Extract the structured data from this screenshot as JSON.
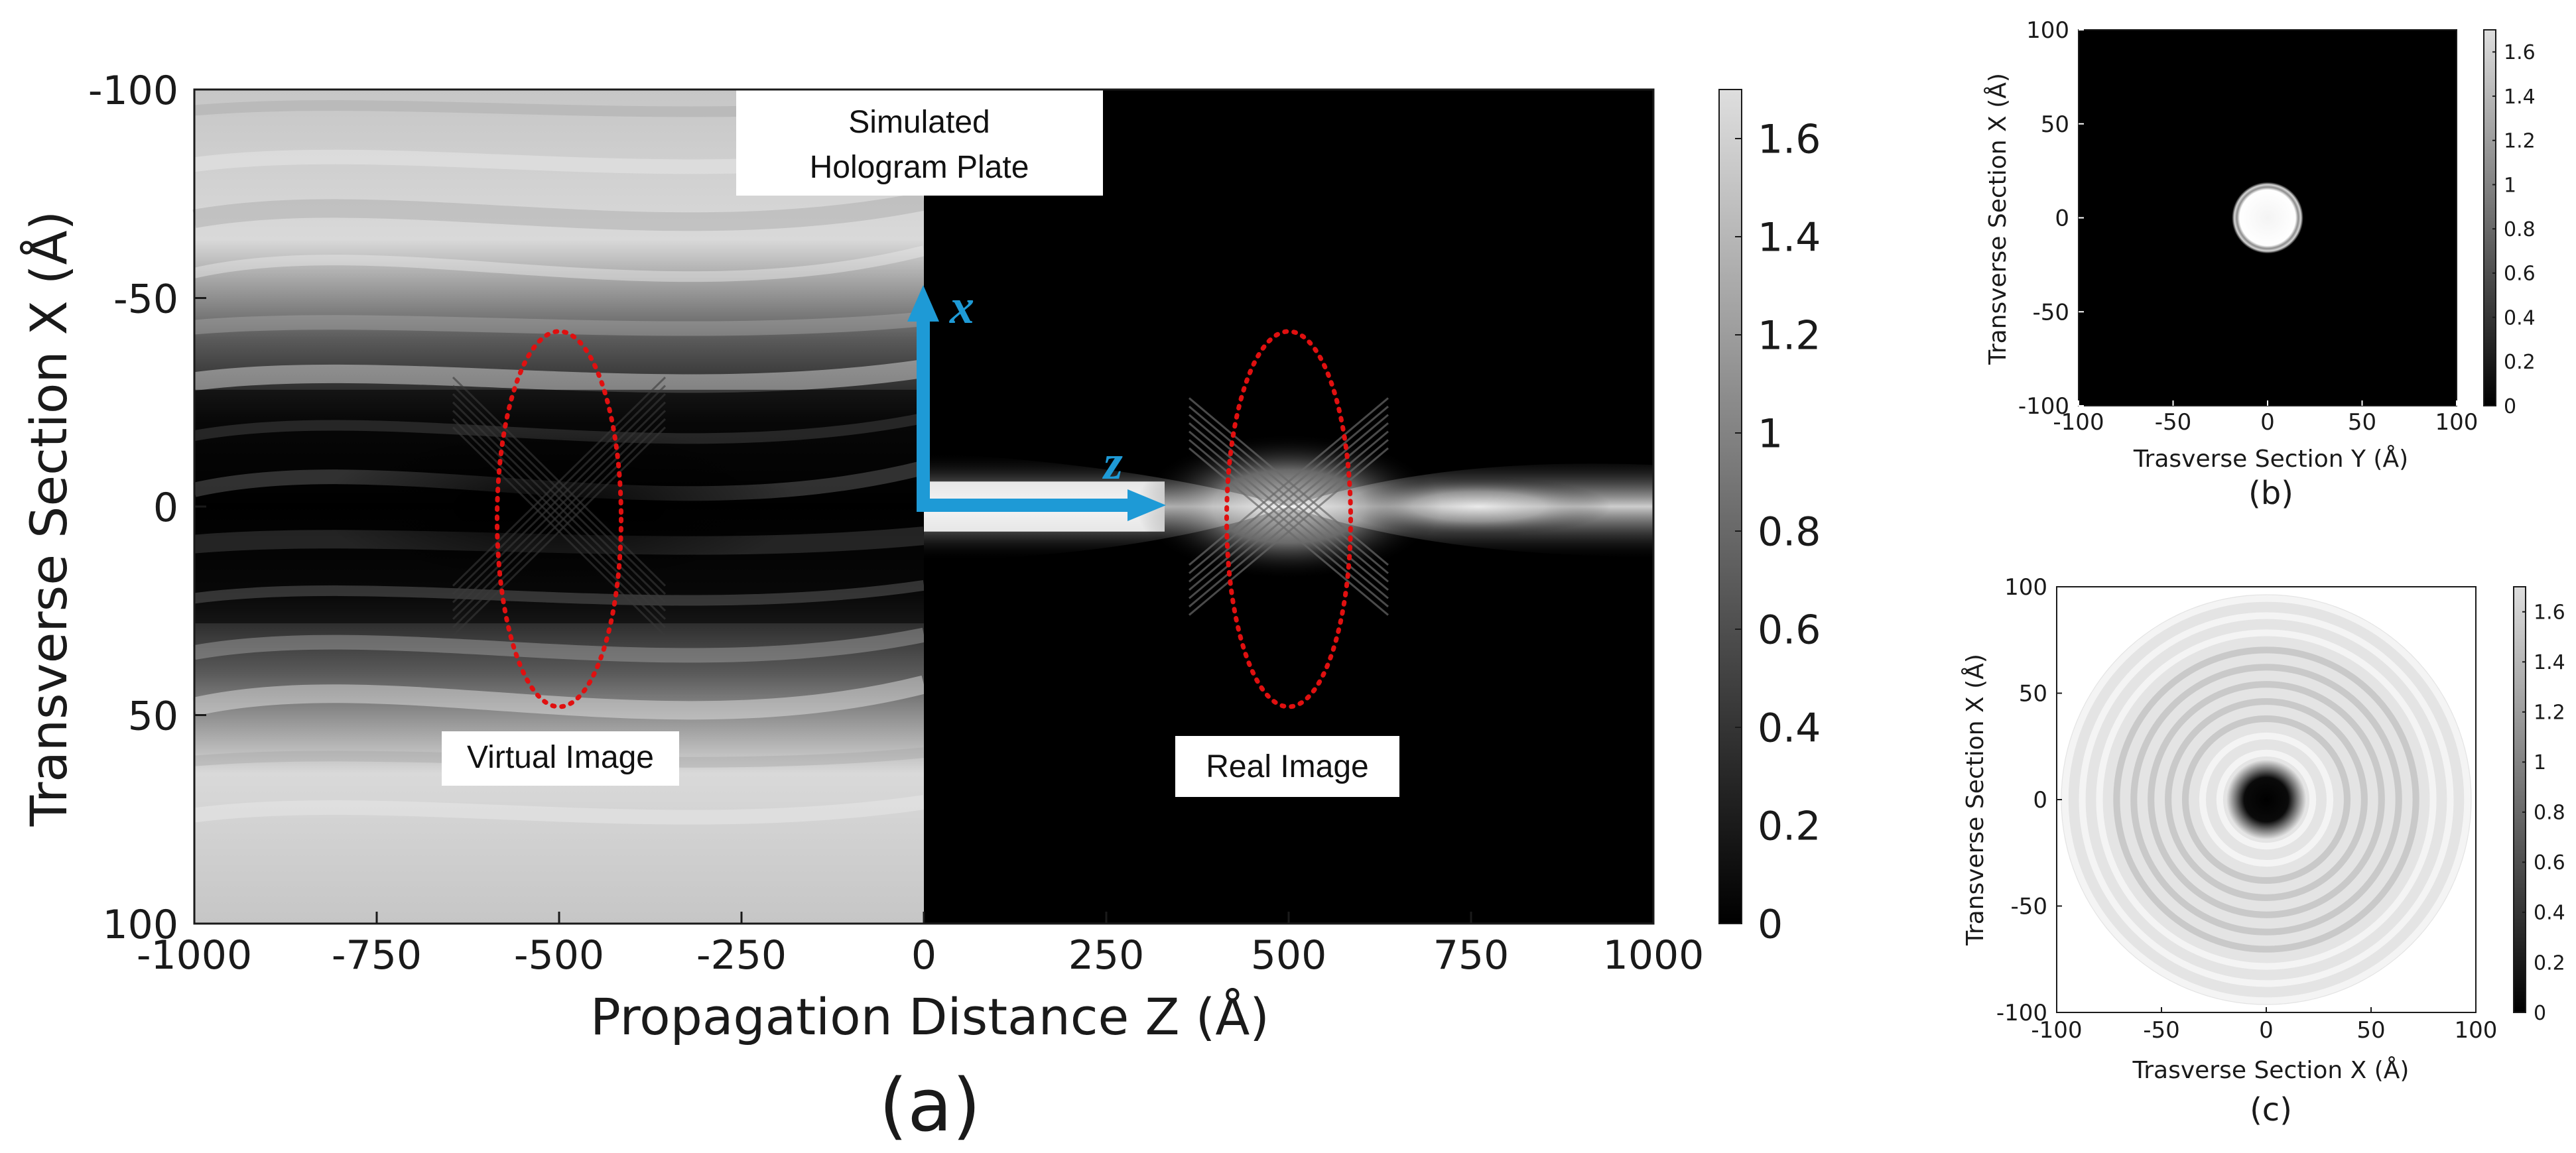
{
  "colors": {
    "accent": "#1e9ad6",
    "ellipse": "#e01010",
    "frame": "#1a1a1a"
  },
  "chart_data": [
    {
      "id": "a",
      "type": "heatmap",
      "caption": "(a)",
      "xlabel": "Propagation Distance Z (Å)",
      "ylabel": "Transverse Section X (Å)",
      "xlim": [
        -1000,
        1000
      ],
      "ylim": [
        -100,
        100
      ],
      "y_inverted": true,
      "xticks": [
        -1000,
        -750,
        -500,
        -250,
        0,
        250,
        500,
        750,
        1000
      ],
      "xtick_labels": [
        "-1000",
        "-750",
        "-500",
        "-250",
        "0",
        "250",
        "500",
        "750",
        "1000"
      ],
      "yticks": [
        -100,
        -50,
        0,
        50,
        100
      ],
      "ytick_labels": [
        "-100",
        "-50",
        "0",
        "50",
        "100"
      ],
      "colorbar": {
        "range": [
          0,
          1.7
        ],
        "ticks": [
          0,
          0.2,
          0.4,
          0.6,
          0.8,
          1,
          1.2,
          1.4,
          1.6
        ],
        "tick_labels": [
          "0",
          "0.2",
          "0.4",
          "0.6",
          "0.8",
          "1",
          "1.2",
          "1.4",
          "1.6"
        ],
        "colormap": "gray"
      },
      "annotations": {
        "hologram_plate": [
          "Simulated",
          "Hologram Plate"
        ],
        "virtual_image": "Virtual Image",
        "real_image": "Real Image",
        "axis_x": "x",
        "axis_z": "z"
      },
      "ellipses": [
        {
          "name": "virtual-image",
          "center_z": -500,
          "center_x": 3,
          "half_width_z": 85,
          "half_height_x": 45
        },
        {
          "name": "real-image",
          "center_z": 500,
          "center_x": 3,
          "half_width_z": 85,
          "half_height_x": 45
        }
      ]
    },
    {
      "id": "b",
      "type": "heatmap",
      "caption": "(b)",
      "xlabel": "Trasverse Section Y (Å)",
      "ylabel": "Transverse Section X (Å)",
      "xlim": [
        -100,
        100
      ],
      "ylim": [
        -100,
        100
      ],
      "xticks": [
        -100,
        -50,
        0,
        50,
        100
      ],
      "xtick_labels": [
        "-100",
        "-50",
        "0",
        "50",
        "100"
      ],
      "yticks": [
        100,
        50,
        0,
        -50,
        -100
      ],
      "ytick_labels": [
        "100",
        "50",
        "0",
        "-50",
        "-100"
      ],
      "disk": {
        "center": [
          0,
          0
        ],
        "radius": 14,
        "value": 1.6
      },
      "background_value": 0,
      "colorbar": {
        "range": [
          0,
          1.7
        ],
        "ticks": [
          0,
          0.2,
          0.4,
          0.6,
          0.8,
          1,
          1.2,
          1.4,
          1.6
        ],
        "tick_labels": [
          "0",
          "0.2",
          "0.4",
          "0.6",
          "0.8",
          "1",
          "1.2",
          "1.4",
          "1.6"
        ],
        "colormap": "gray"
      }
    },
    {
      "id": "c",
      "type": "heatmap",
      "caption": "(c)",
      "xlabel": "Trasverse Section X (Å)",
      "ylabel": "Transverse Section X (Å)",
      "xlim": [
        -100,
        100
      ],
      "ylim": [
        -100,
        100
      ],
      "xticks": [
        -100,
        -50,
        0,
        50,
        100
      ],
      "xtick_labels": [
        "-100",
        "-50",
        "0",
        "50",
        "100"
      ],
      "yticks": [
        100,
        50,
        0,
        -50,
        -100
      ],
      "ytick_labels": [
        "100",
        "50",
        "0",
        "-50",
        "-100"
      ],
      "disk": {
        "center": [
          0,
          0
        ],
        "radius": 8,
        "value": 0
      },
      "ring_limit_radius": 98,
      "background_value": 1.6,
      "colorbar": {
        "range": [
          0,
          1.7
        ],
        "ticks": [
          0,
          0.2,
          0.4,
          0.6,
          0.8,
          1,
          1.2,
          1.4,
          1.6
        ],
        "tick_labels": [
          "0",
          "0.2",
          "0.4",
          "0.6",
          "0.8",
          "1",
          "1.2",
          "1.4",
          "1.6"
        ],
        "colormap": "gray"
      }
    }
  ]
}
